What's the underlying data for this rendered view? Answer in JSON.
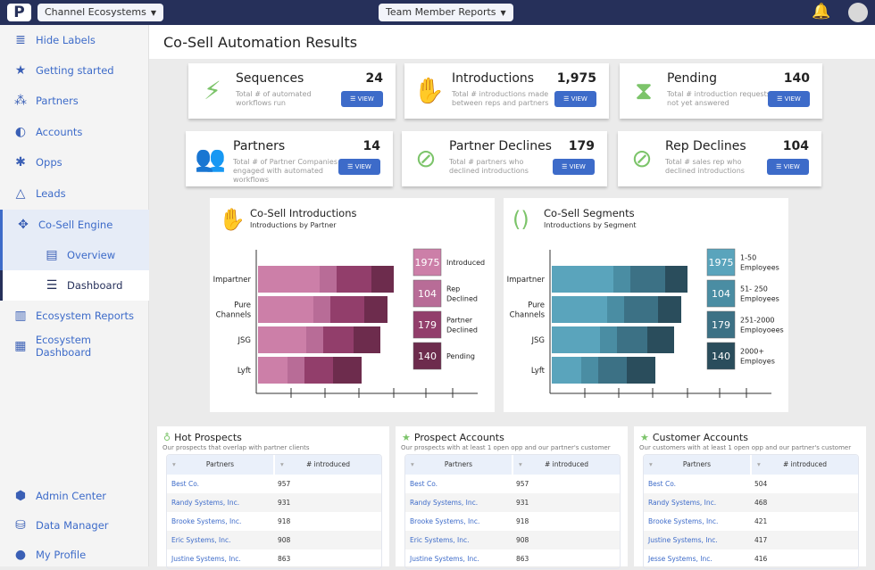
{
  "header": {
    "logo": "P",
    "workspace": "Channel Ecosystems",
    "reports": "Team Member Reports",
    "icons": [
      "bell-icon",
      "avatar"
    ]
  },
  "sidebar": {
    "items": [
      {
        "label": "Hide Labels",
        "icon": "≣",
        "name": "hide-labels"
      },
      {
        "label": "Getting started",
        "icon": "★",
        "name": "getting-started"
      },
      {
        "label": "Partners",
        "icon": "⁂",
        "name": "partners"
      },
      {
        "label": "Accounts",
        "icon": "◐",
        "name": "accounts"
      },
      {
        "label": "Opps",
        "icon": "✱",
        "name": "opps"
      },
      {
        "label": "Leads",
        "icon": "△",
        "name": "leads"
      },
      {
        "label": "Co-Sell Engine",
        "icon": "✥",
        "name": "co-sell-engine"
      },
      {
        "label": "Overview",
        "icon": "▤",
        "name": "overview"
      },
      {
        "label": "Dashboard",
        "icon": "☰",
        "name": "dashboard"
      },
      {
        "label": "Ecosystem Reports",
        "icon": "▥",
        "name": "ecosystem-reports"
      },
      {
        "label": "Ecosystem Dashboard",
        "icon": "▦",
        "name": "ecosystem-dashboard"
      },
      {
        "label": "Admin Center",
        "icon": "⬢",
        "name": "admin-center"
      },
      {
        "label": "Data Manager",
        "icon": "⛁",
        "name": "data-manager"
      },
      {
        "label": "My Profile",
        "icon": "●",
        "name": "my-profile"
      }
    ]
  },
  "page": {
    "title": "Co-Sell Automation Results"
  },
  "cards": [
    {
      "title": "Sequences",
      "value": "24",
      "desc": "Total # of automated workflows run",
      "icon": "⚡",
      "button": "VIEW"
    },
    {
      "title": "Introductions",
      "value": "1,975",
      "desc": "Total # introductions made between reps and partners",
      "icon": "✋",
      "button": "VIEW"
    },
    {
      "title": "Pending",
      "value": "140",
      "desc": "Total # introduction requests not yet answered",
      "icon": "⧗",
      "button": "VIEW"
    },
    {
      "title": "Partners",
      "value": "14",
      "desc": "Total # of Partner Companies engaged with automated workflows",
      "icon": "👥",
      "button": "VIEW"
    },
    {
      "title": "Partner Declines",
      "value": "179",
      "desc": "Total # partners who declined introductions",
      "icon": "⊘",
      "button": "VIEW"
    },
    {
      "title": "Rep Declines",
      "value": "104",
      "desc": "Total # sales rep who declined introductions",
      "icon": "⊘",
      "button": "VIEW"
    }
  ],
  "chart_data": [
    {
      "type": "bar",
      "orientation": "horizontal",
      "stacked": true,
      "title": "Co-Sell Introductions",
      "subtitle": "Introductions by Partner",
      "categories": [
        "Impartner",
        "Pure Channels",
        "JSG",
        "Lyft"
      ],
      "legend": [
        {
          "value": "1975",
          "label": "Introduced"
        },
        {
          "value": "104",
          "label": "Rep Declined"
        },
        {
          "value": "179",
          "label": "Partner Declined"
        },
        {
          "value": "140",
          "label": "Pending"
        }
      ],
      "colors": [
        "#cc7fa8",
        "#b86c97",
        "#923e6b",
        "#6d2c4d"
      ],
      "series_values": [
        [
          69,
          19,
          39,
          25
        ],
        [
          62,
          19,
          38,
          26
        ],
        [
          54,
          19,
          34,
          30
        ],
        [
          33,
          19,
          32,
          32
        ]
      ]
    },
    {
      "type": "bar",
      "orientation": "horizontal",
      "stacked": true,
      "title": "Co-Sell Segments",
      "subtitle": "Introductions by Segment",
      "categories": [
        "Impartner",
        "Pure Channels",
        "JSG",
        "Lyft"
      ],
      "legend": [
        {
          "value": "1975",
          "label": "1-50 Employees"
        },
        {
          "value": "104",
          "label": "51- 250 Employees"
        },
        {
          "value": "179",
          "label": "251-2000 Employoees"
        },
        {
          "value": "140",
          "label": "2000+ Employes"
        }
      ],
      "colors": [
        "#5aa4bc",
        "#4a8da3",
        "#3c7185",
        "#2a4d5c"
      ],
      "series_values": [
        [
          69,
          19,
          39,
          25
        ],
        [
          62,
          19,
          38,
          26
        ],
        [
          54,
          19,
          34,
          30
        ],
        [
          33,
          19,
          32,
          32
        ]
      ]
    }
  ],
  "panels": [
    {
      "title": "Hot Prospects",
      "icon": "♁",
      "desc": "Our prospects that overlap with partner clients",
      "cols": [
        "Partners",
        "# introduced"
      ],
      "rows": [
        [
          "Best Co.",
          "957"
        ],
        [
          "Randy Systems, Inc.",
          "931"
        ],
        [
          "Brooke Systems, Inc.",
          "918"
        ],
        [
          "Eric Systems, Inc.",
          "908"
        ],
        [
          "Justine Systems, Inc.",
          "863"
        ]
      ]
    },
    {
      "title": "Prospect Accounts",
      "icon": "★",
      "desc": "Our prospects with at least 1 open opp and our partner's customer",
      "cols": [
        "Partners",
        "# introduced"
      ],
      "rows": [
        [
          "Best Co.",
          "957"
        ],
        [
          "Randy Systems, Inc.",
          "931"
        ],
        [
          "Brooke Systems, Inc.",
          "918"
        ],
        [
          "Eric Systems, Inc.",
          "908"
        ],
        [
          "Justine Systems, Inc.",
          "863"
        ]
      ]
    },
    {
      "title": "Customer Accounts",
      "icon": "★",
      "desc": "Our customers with at least 1 open opp and our partner's customer",
      "cols": [
        "Partners",
        "# introduced"
      ],
      "rows": [
        [
          "Best Co.",
          "504"
        ],
        [
          "Randy Systems, Inc.",
          "468"
        ],
        [
          "Brooke Systems, Inc.",
          "421"
        ],
        [
          "Justine Systems, Inc.",
          "417"
        ],
        [
          "Jesse Systems, Inc.",
          "416"
        ]
      ]
    }
  ]
}
